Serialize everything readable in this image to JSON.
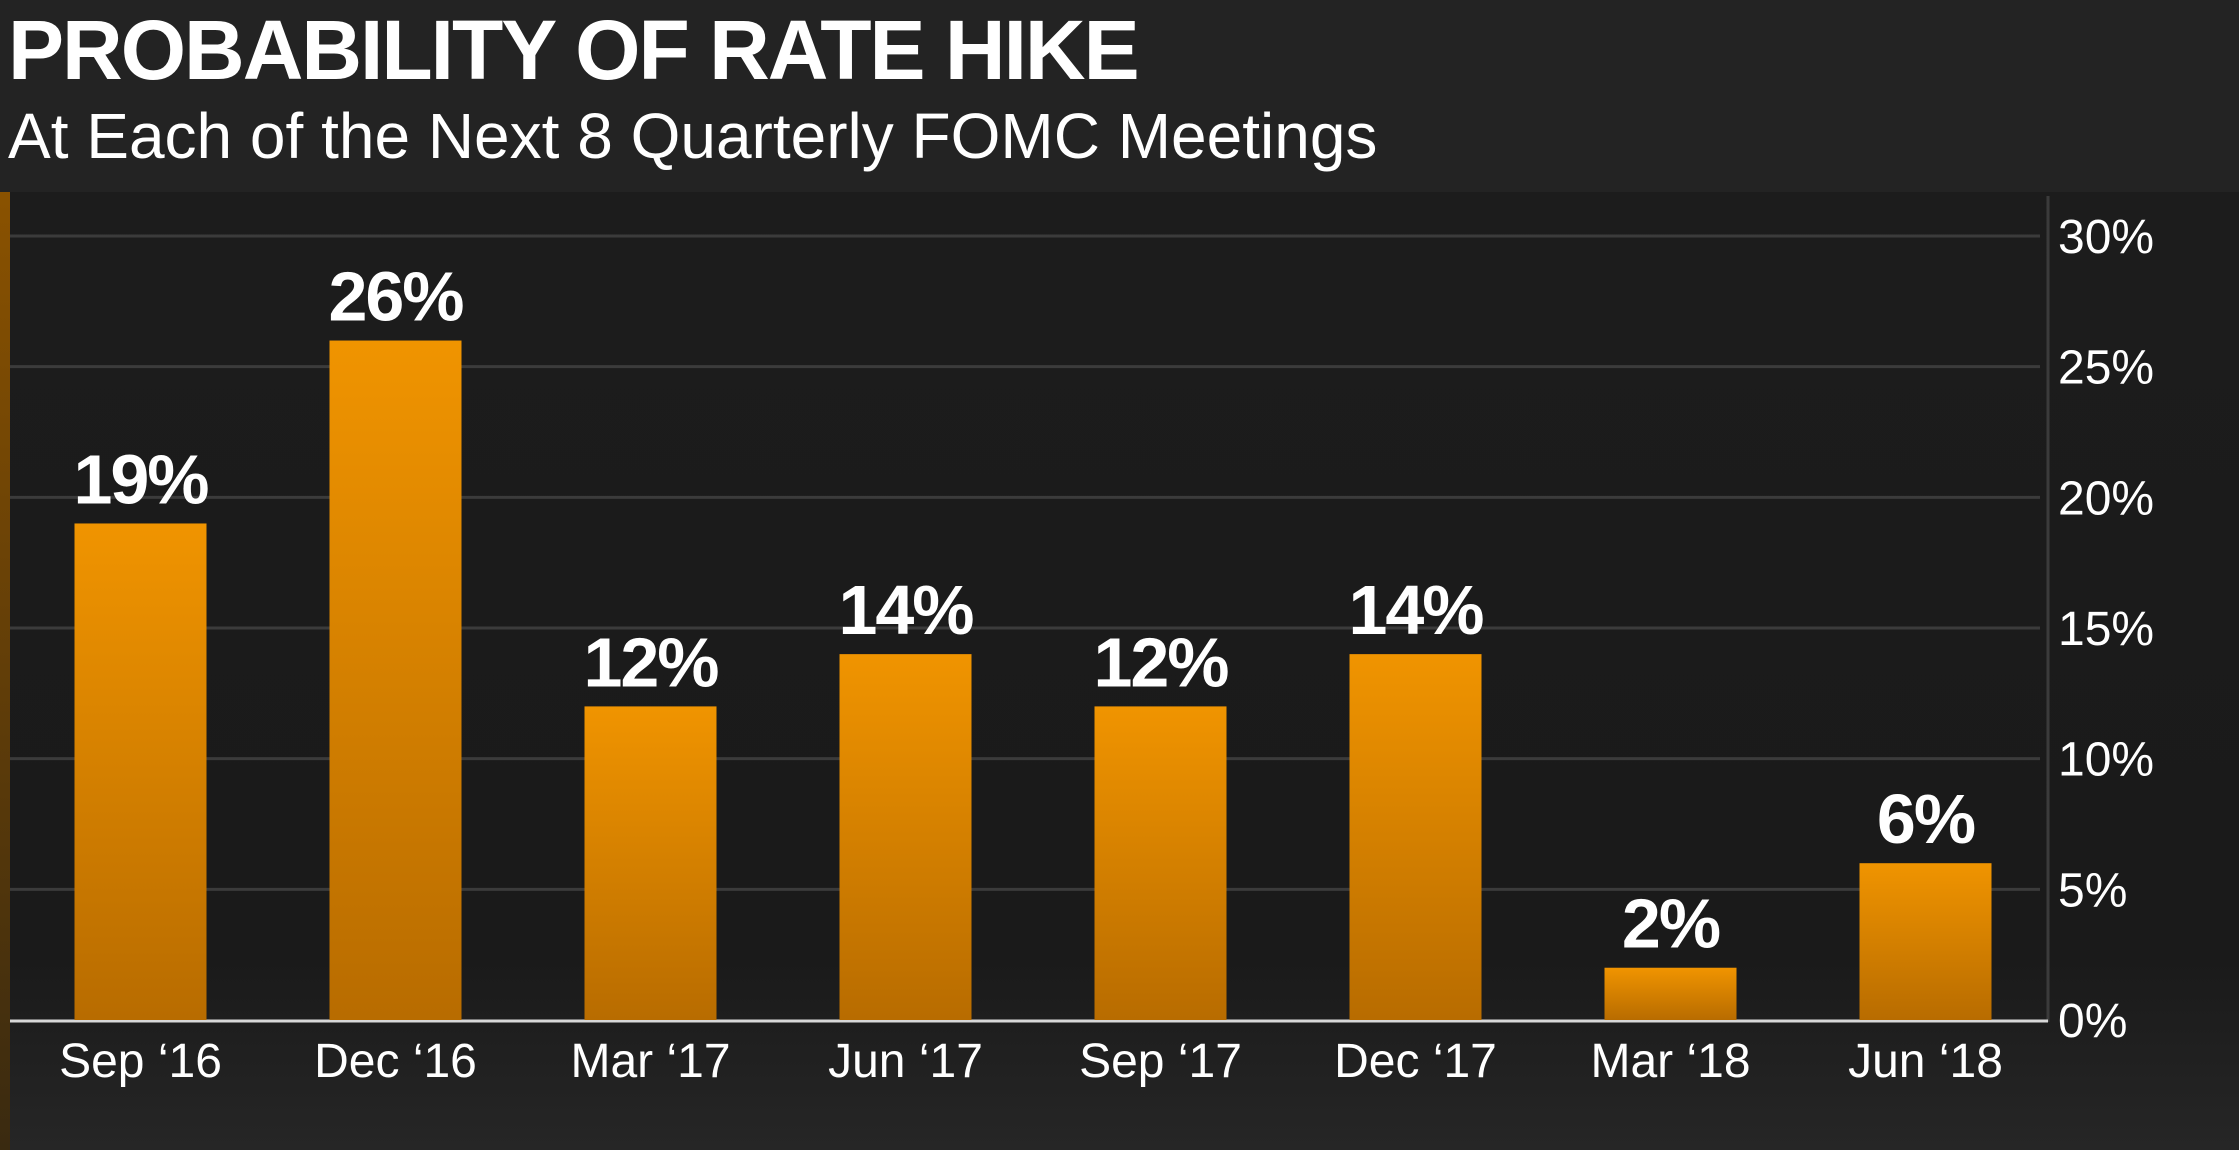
{
  "header": {
    "title": "PROBABILITY OF RATE HIKE",
    "subtitle": "At Each of the Next 8 Quarterly FOMC Meetings"
  },
  "colors": {
    "bar_top": "#f09400",
    "bar_bottom": "#b86c00",
    "background": "#1b1b1b",
    "header_background": "#232323",
    "gridline": "#3b3b3b",
    "text": "#ffffff"
  },
  "chart_data": {
    "type": "bar",
    "title": "PROBABILITY OF RATE HIKE",
    "subtitle": "At Each of the Next 8 Quarterly FOMC Meetings",
    "categories": [
      "Sep ‘16",
      "Dec ‘16",
      "Mar ‘17",
      "Jun ‘17",
      "Sep ‘17",
      "Dec ‘17",
      "Mar ‘18",
      "Jun ‘18"
    ],
    "values": [
      19,
      26,
      12,
      14,
      12,
      14,
      2,
      6
    ],
    "data_labels": [
      "19%",
      "26%",
      "12%",
      "14%",
      "12%",
      "14%",
      "2%",
      "6%"
    ],
    "yticks": [
      "0%",
      "5%",
      "10%",
      "15%",
      "20%",
      "25%",
      "30%"
    ],
    "ylim": [
      0,
      30
    ],
    "y_axis_side": "right",
    "grid": true,
    "legend": "none"
  }
}
